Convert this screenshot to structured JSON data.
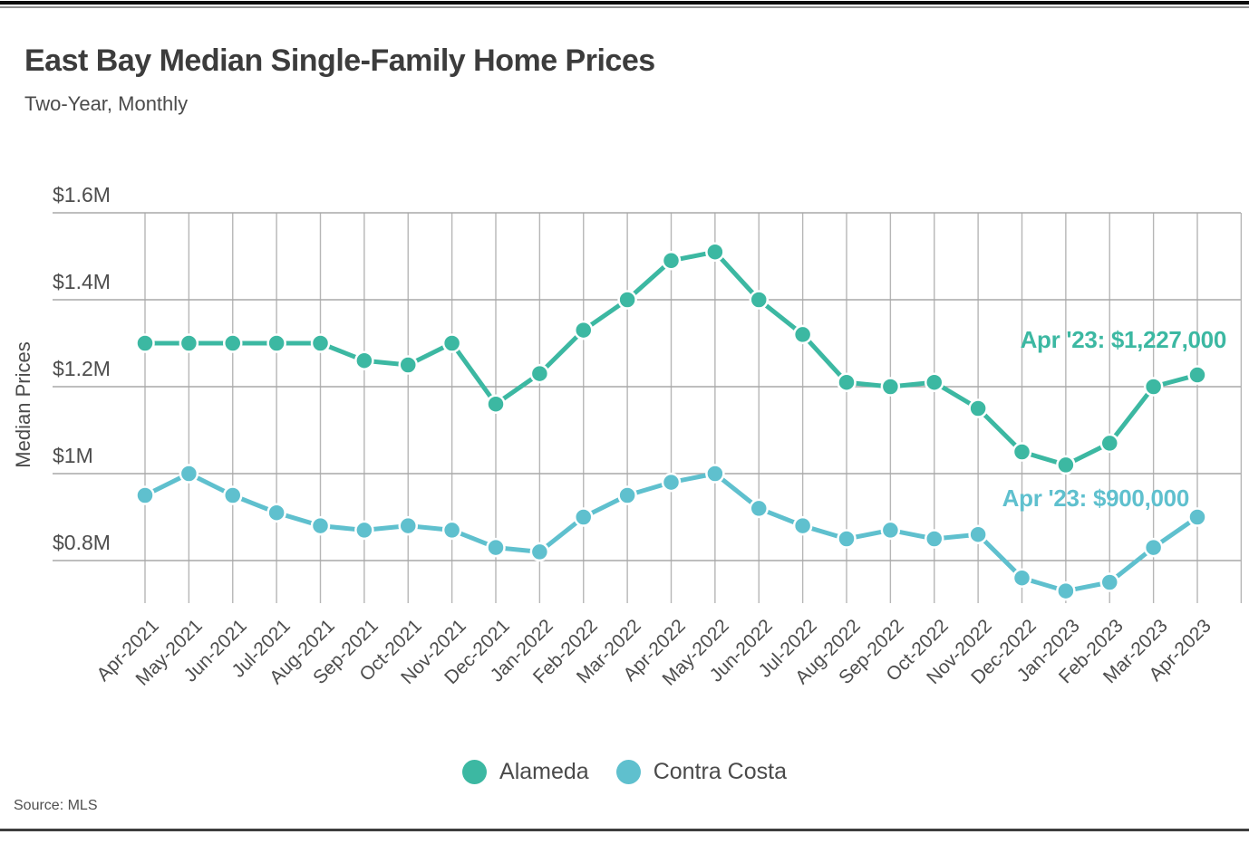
{
  "page": {
    "title": "East Bay Median Single-Family Home Prices",
    "subtitle": "Two-Year, Monthly",
    "source": "Source: MLS"
  },
  "colors": {
    "alameda": "#3cb8a2",
    "contra_costa": "#5fc0ce",
    "grid_vertical": "#b6b6b6",
    "grid_horizontal": "#a8a8a8",
    "axis_text": "#4d4d4d",
    "title_text": "#3c3c3c"
  },
  "chart_data": {
    "type": "line",
    "title": "East Bay Median Single-Family Home Prices",
    "subtitle": "Two-Year, Monthly",
    "xlabel": "",
    "ylabel": "Median Prices",
    "units": "USD millions",
    "ylim": [
      0.7,
      1.6
    ],
    "grid": true,
    "legend_position": "bottom",
    "y_ticks": [
      {
        "value": 1.6,
        "label": "$1.6M"
      },
      {
        "value": 1.4,
        "label": "$1.4M"
      },
      {
        "value": 1.2,
        "label": "$1.2M"
      },
      {
        "value": 1.0,
        "label": "$1M"
      },
      {
        "value": 0.8,
        "label": "$0.8M"
      }
    ],
    "categories": [
      "Apr-2021",
      "May-2021",
      "Jun-2021",
      "Jul-2021",
      "Aug-2021",
      "Sep-2021",
      "Oct-2021",
      "Nov-2021",
      "Dec-2021",
      "Jan-2022",
      "Feb-2022",
      "Mar-2022",
      "Apr-2022",
      "May-2022",
      "Jun-2022",
      "Jul-2022",
      "Aug-2022",
      "Sep-2022",
      "Oct-2022",
      "Nov-2022",
      "Dec-2022",
      "Jan-2023",
      "Feb-2023",
      "Mar-2023",
      "Apr-2023"
    ],
    "series": [
      {
        "name": "Alameda",
        "color": "#3cb8a2",
        "values": [
          1.3,
          1.3,
          1.3,
          1.3,
          1.3,
          1.26,
          1.25,
          1.3,
          1.16,
          1.23,
          1.33,
          1.4,
          1.49,
          1.51,
          1.4,
          1.32,
          1.21,
          1.2,
          1.21,
          1.15,
          1.05,
          1.02,
          1.07,
          1.2,
          1.227
        ]
      },
      {
        "name": "Contra Costa",
        "color": "#5fc0ce",
        "values": [
          0.95,
          1.0,
          0.95,
          0.91,
          0.88,
          0.87,
          0.88,
          0.87,
          0.83,
          0.82,
          0.9,
          0.95,
          0.98,
          1.0,
          0.92,
          0.88,
          0.85,
          0.87,
          0.85,
          0.86,
          0.76,
          0.73,
          0.75,
          0.83,
          0.9
        ]
      }
    ],
    "annotations": [
      {
        "series": "Alameda",
        "text": "Apr '23: $1,227,000"
      },
      {
        "series": "Contra Costa",
        "text": "Apr '23: $900,000"
      }
    ]
  }
}
